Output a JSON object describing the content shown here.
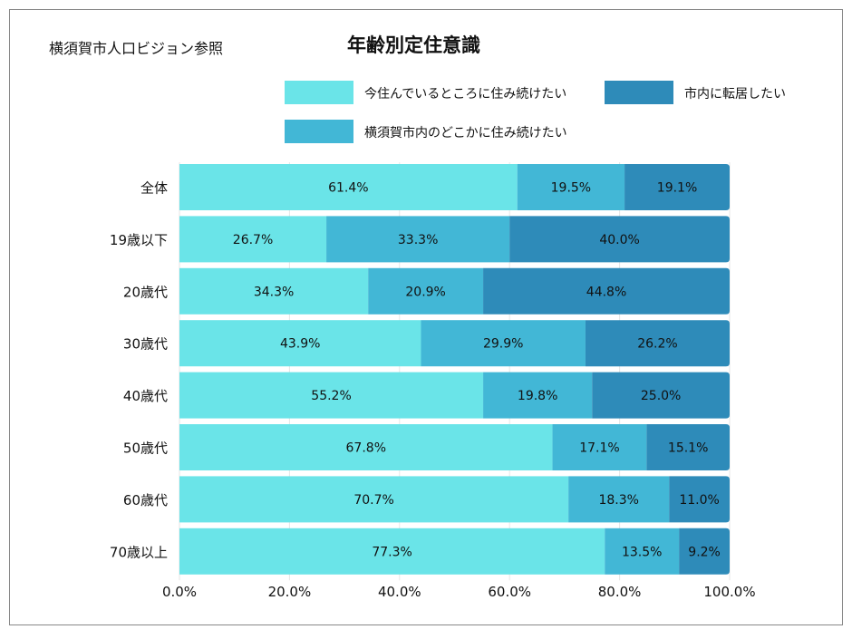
{
  "source_note": "横須賀市人口ビジョン参照",
  "chart_data": {
    "type": "bar",
    "orientation": "horizontal",
    "stacked": true,
    "title": "年齢別定住意識",
    "categories": [
      "全体",
      "19歳以下",
      "20歳代",
      "30歳代",
      "40歳代",
      "50歳代",
      "60歳代",
      "70歳以上"
    ],
    "series": [
      {
        "name": "今住んでいるところに住み続けたい",
        "color": "#6ae4e8",
        "values": [
          61.4,
          26.7,
          34.3,
          43.9,
          55.2,
          67.8,
          70.7,
          77.3
        ]
      },
      {
        "name": "横須賀市内のどこかに住み続けたい",
        "color": "#42b7d6",
        "values": [
          19.5,
          33.3,
          20.9,
          29.9,
          19.8,
          17.1,
          18.3,
          13.5
        ]
      },
      {
        "name": "市内に転居したい",
        "color": "#2e8bb9",
        "values": [
          19.1,
          40.0,
          44.8,
          26.2,
          25.0,
          15.1,
          11.0,
          9.2
        ]
      }
    ],
    "xlim": [
      0,
      100
    ],
    "xticks": [
      "0.0%",
      "20.0%",
      "40.0%",
      "60.0%",
      "80.0%",
      "100.0%"
    ],
    "grid": true,
    "legend_position": "top"
  }
}
